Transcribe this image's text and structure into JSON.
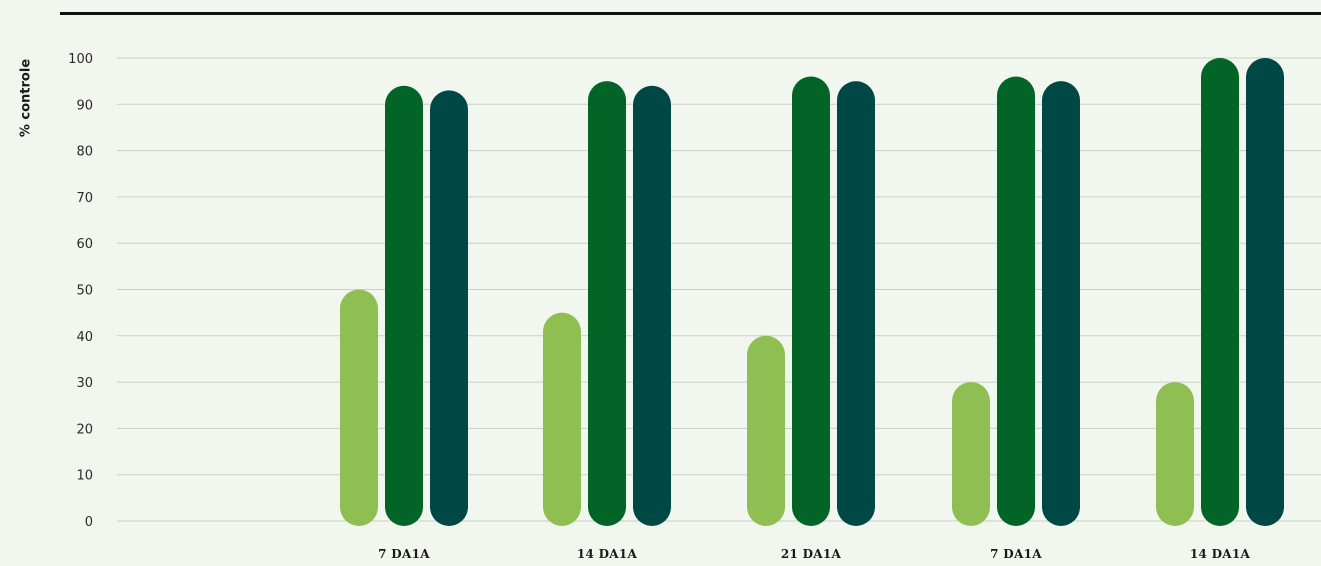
{
  "chart_data": {
    "type": "bar",
    "ylabel": "% controle",
    "ylim": [
      0,
      100
    ],
    "yticks": [
      0,
      10,
      20,
      30,
      40,
      50,
      60,
      70,
      80,
      90,
      100
    ],
    "grid": true,
    "categories": [
      "7 DA1A",
      "14 DA1A",
      "21 DA1A",
      "7 DA1A",
      "14 DA1A"
    ],
    "series": [
      {
        "color": "#8fbf52",
        "values": [
          50,
          45,
          40,
          30,
          30
        ]
      },
      {
        "color": "#036428",
        "values": [
          94,
          95,
          96,
          96,
          100
        ]
      },
      {
        "color": "#004845",
        "values": [
          93,
          94,
          95,
          95,
          100
        ]
      }
    ]
  }
}
